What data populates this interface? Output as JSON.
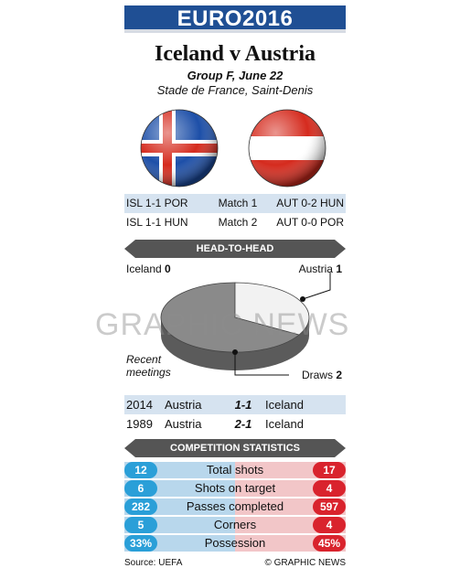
{
  "header": {
    "banner": "EURO2016"
  },
  "match": {
    "title": "Iceland v Austria",
    "group_date": "Group F, June 22",
    "venue": "Stade de France, Saint-Denis"
  },
  "previous_matches": [
    {
      "left": "ISL 1-1 POR",
      "label": "Match 1",
      "right": "AUT 0-2 HUN"
    },
    {
      "left": "ISL 1-1 HUN",
      "label": "Match 2",
      "right": "AUT 0-0 POR"
    }
  ],
  "head_to_head": {
    "section_title": "HEAD-TO-HEAD",
    "iceland_label": "Iceland",
    "iceland_wins": "0",
    "austria_label": "Austria",
    "austria_wins": "1",
    "draws_label": "Draws",
    "draws": "2",
    "recent_label_1": "Recent",
    "recent_label_2": "meetings",
    "results": [
      {
        "year": "2014",
        "team1": "Austria",
        "score": "1-1",
        "team2": "Iceland"
      },
      {
        "year": "1989",
        "team1": "Austria",
        "score": "2-1",
        "team2": "Iceland"
      }
    ]
  },
  "stats": {
    "section_title": "COMPETITION STATISTICS",
    "rows": [
      {
        "label": "Total shots",
        "iceland": "12",
        "austria": "17"
      },
      {
        "label": "Shots on target",
        "iceland": "6",
        "austria": "4"
      },
      {
        "label": "Passes completed",
        "iceland": "282",
        "austria": "597"
      },
      {
        "label": "Corners",
        "iceland": "5",
        "austria": "4"
      },
      {
        "label": "Possession",
        "iceland": "33%",
        "austria": "45%"
      }
    ]
  },
  "footer": {
    "source": "Source: UEFA",
    "credit": "© GRAPHIC NEWS"
  },
  "watermark": "GRAPHIC NEWS",
  "colors": {
    "banner": "#1f4f94",
    "iceland": "#2a9fd8",
    "austria": "#d9232d",
    "austria_slice": "#f0f0f0",
    "draws_slice": "#8a8a8a"
  }
}
